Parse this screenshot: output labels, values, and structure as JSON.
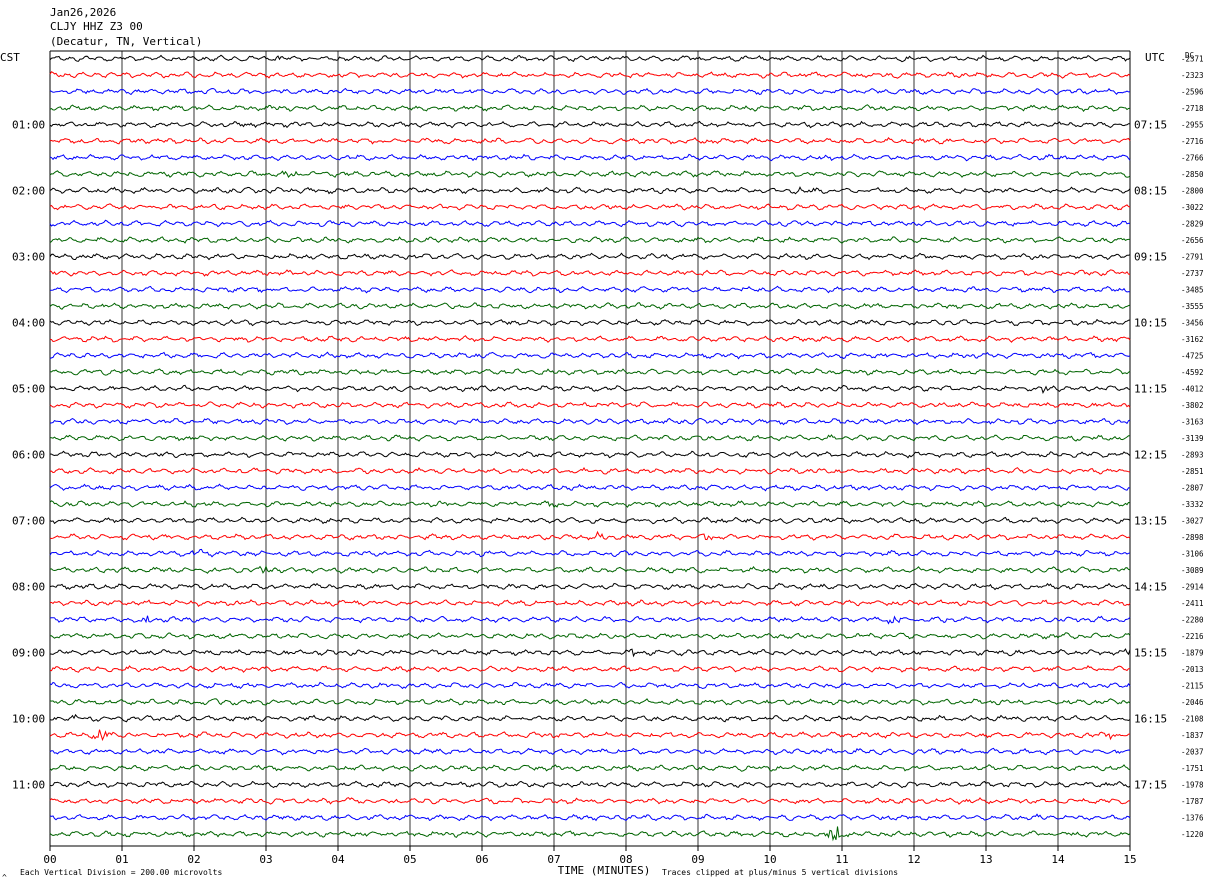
{
  "header": {
    "date": "Jan26,2026",
    "station": "CLJY HHZ Z3 00",
    "location": "(Decatur, TN, Vertical)"
  },
  "left_axis_label": "CST",
  "right_axis_label": "UTC",
  "dc_header": "DC",
  "x_axis_title": "TIME (MINUTES)",
  "footer": {
    "division_note": "Each Vertical Division =  200.00 microvolts",
    "clip_note": "Traces clipped at plus/minus 5 vertical divisions",
    "mark": "^"
  },
  "colors": {
    "trace_cycle": [
      "#000000",
      "#ff0000",
      "#0000ff",
      "#006400"
    ],
    "grid": "#000000",
    "background": "#ffffff"
  },
  "chart_data": {
    "type": "line",
    "title": "",
    "xlabel": "TIME (MINUTES)",
    "ylabel": "",
    "xlim": [
      0,
      15
    ],
    "x_ticks": [
      "00",
      "01",
      "02",
      "03",
      "04",
      "05",
      "06",
      "07",
      "08",
      "09",
      "10",
      "11",
      "12",
      "13",
      "14",
      "15"
    ],
    "minutes_per_row": 15,
    "row_count": 48,
    "left_time_labels": [
      "01:00",
      "02:00",
      "03:00",
      "04:00",
      "05:00",
      "06:00",
      "07:00",
      "08:00",
      "09:00",
      "10:00",
      "11:00"
    ],
    "right_time_labels": [
      "07:15",
      "08:15",
      "09:15",
      "10:15",
      "11:15",
      "12:15",
      "13:15",
      "14:15",
      "15:15",
      "16:15",
      "17:15"
    ],
    "first_labeled_row": 4,
    "rows_per_label": 4,
    "dc_offsets": [
      "-2371",
      "-2323",
      "-2596",
      "-2718",
      "-2955",
      "-2716",
      "-2766",
      "-2850",
      "-2800",
      "-3022",
      "-2829",
      "-2656",
      "-2791",
      "-2737",
      "-3485",
      "-3555",
      "-3456",
      "-3162",
      "-4725",
      "-4592",
      "-4012",
      "-3802",
      "-3163",
      "-3139",
      "-2893",
      "-2851",
      "-2807",
      "-3332",
      "-3027",
      "-2898",
      "-3106",
      "-3089",
      "-2914",
      "-2411",
      "-2280",
      "-2216",
      "-1879",
      "-2013",
      "-2115",
      "-2046",
      "-2108",
      "-1837",
      "-2037",
      "-1751",
      "-1978",
      "-1787",
      "-1376",
      "-1220"
    ],
    "events": [
      {
        "row": 0,
        "minute": 3.2,
        "amp": 3
      },
      {
        "row": 6,
        "minute": 10.7,
        "amp": 3
      },
      {
        "row": 7,
        "minute": 3.3,
        "amp": 4
      },
      {
        "row": 8,
        "minute": 10.5,
        "amp": 6
      },
      {
        "row": 13,
        "minute": 9.1,
        "amp": 3
      },
      {
        "row": 20,
        "minute": 13.8,
        "amp": 6
      },
      {
        "row": 27,
        "minute": 7.0,
        "amp": 4
      },
      {
        "row": 29,
        "minute": 7.6,
        "amp": 6
      },
      {
        "row": 29,
        "minute": 9.1,
        "amp": 4
      },
      {
        "row": 30,
        "minute": 2.1,
        "amp": 6
      },
      {
        "row": 31,
        "minute": 3.0,
        "amp": 5
      },
      {
        "row": 34,
        "minute": 1.3,
        "amp": 6
      },
      {
        "row": 34,
        "minute": 11.7,
        "amp": 7
      },
      {
        "row": 34,
        "minute": 12.4,
        "amp": 4
      },
      {
        "row": 36,
        "minute": 8.1,
        "amp": 4
      },
      {
        "row": 36,
        "minute": 15.0,
        "amp": 4
      },
      {
        "row": 39,
        "minute": 2.3,
        "amp": 4
      },
      {
        "row": 40,
        "minute": 0.4,
        "amp": 3
      },
      {
        "row": 41,
        "minute": 0.7,
        "amp": 8
      },
      {
        "row": 41,
        "minute": 14.7,
        "amp": 4
      },
      {
        "row": 45,
        "minute": 4.1,
        "amp": 5
      },
      {
        "row": 47,
        "minute": 10.9,
        "amp": 10
      }
    ]
  }
}
